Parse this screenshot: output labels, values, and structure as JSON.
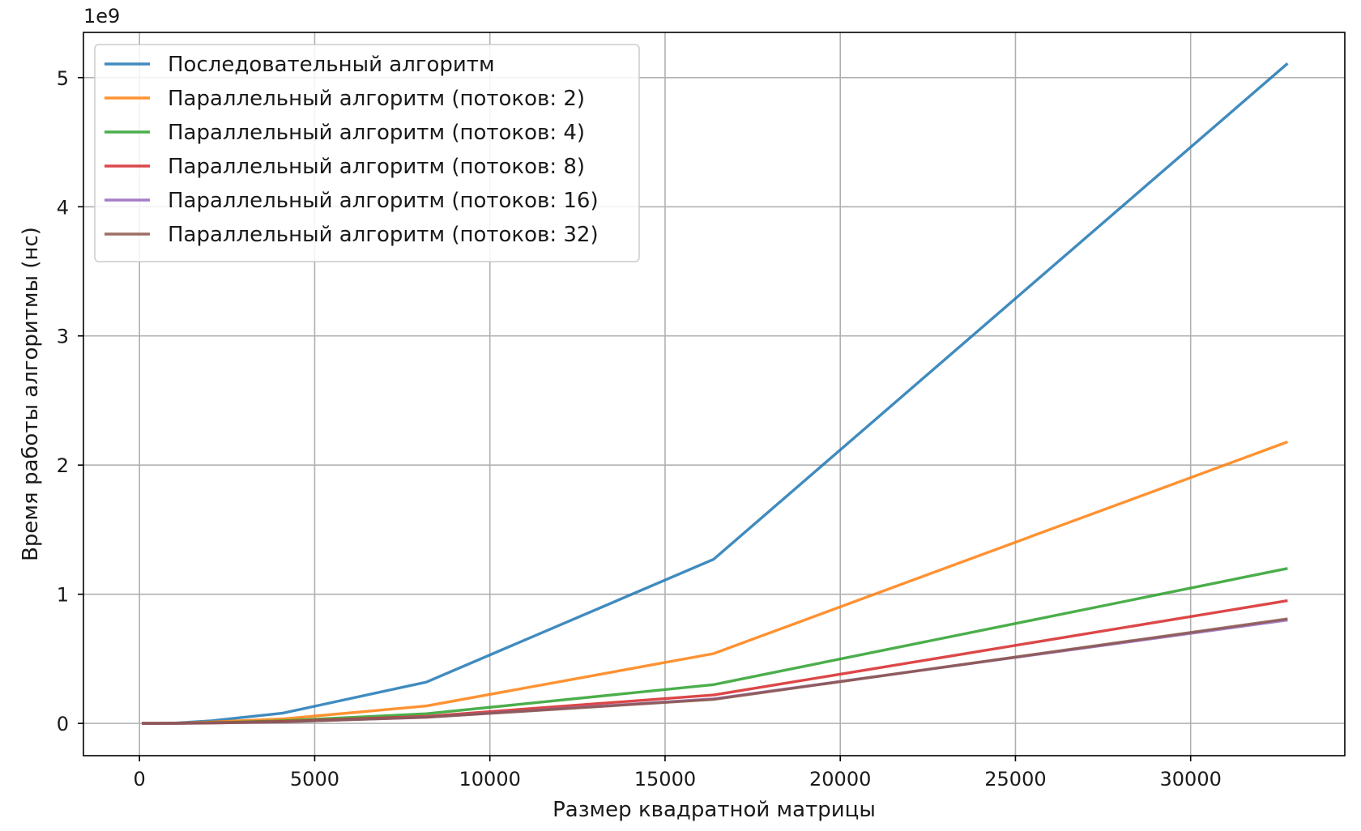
{
  "chart_data": {
    "type": "line",
    "xlabel": "Размер квадратной матрицы",
    "ylabel": "Время работы алгоритмы (нс)",
    "y_offset_label": "1e9",
    "xlim": [
      -1600,
      34400
    ],
    "ylim": [
      -0.25,
      5.35
    ],
    "y_scale_note": "values in units of 1e9 ns",
    "grid": true,
    "legend_position": "top-left",
    "x_ticks": [
      0,
      5000,
      10000,
      15000,
      20000,
      25000,
      30000
    ],
    "x_tick_labels": [
      "0",
      "5000",
      "10000",
      "15000",
      "20000",
      "25000",
      "30000"
    ],
    "y_ticks": [
      0,
      1,
      2,
      3,
      4,
      5
    ],
    "y_tick_labels": [
      "0",
      "1",
      "2",
      "3",
      "4",
      "5"
    ],
    "x": [
      64,
      128,
      256,
      512,
      1024,
      2048,
      4096,
      8192,
      16384,
      32768
    ],
    "series": [
      {
        "name": "Последовательный алгоритм",
        "color": "#1f77b4",
        "values": [
          0,
          0,
          0,
          0,
          0.003,
          0.02,
          0.08,
          0.32,
          1.27,
          5.11
        ]
      },
      {
        "name": "Параллельный алгоритм (потоков: 2)",
        "color": "#ff7f0e",
        "values": [
          0,
          0,
          0,
          0,
          0.002,
          0.01,
          0.035,
          0.135,
          0.54,
          2.18
        ]
      },
      {
        "name": "Параллельный алгоритм (потоков: 4)",
        "color": "#2ca02c",
        "values": [
          0,
          0,
          0,
          0,
          0.001,
          0.005,
          0.02,
          0.075,
          0.3,
          1.2
        ]
      },
      {
        "name": "Параллельный алгоритм (потоков: 8)",
        "color": "#d62728",
        "values": [
          0,
          0,
          0,
          0,
          0.001,
          0.004,
          0.015,
          0.055,
          0.22,
          0.95
        ]
      },
      {
        "name": "Параллельный алгоритм (потоков: 16)",
        "color": "#9467bd",
        "values": [
          0,
          0,
          0,
          0,
          0.001,
          0.003,
          0.012,
          0.048,
          0.19,
          0.8
        ]
      },
      {
        "name": "Параллельный алгоритм (потоков: 32)",
        "color": "#8c564b",
        "values": [
          0,
          0,
          0,
          0,
          0.001,
          0.003,
          0.012,
          0.047,
          0.185,
          0.81
        ]
      }
    ]
  }
}
